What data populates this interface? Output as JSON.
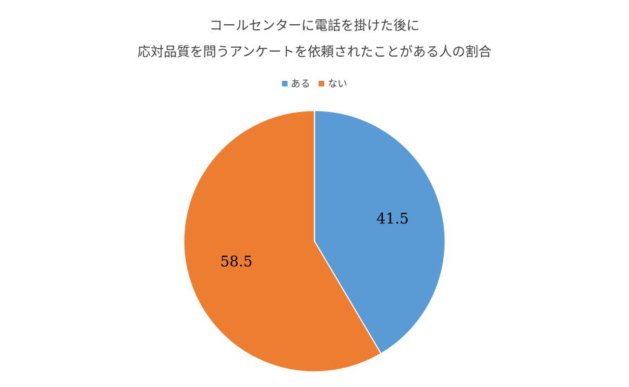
{
  "chart_data": {
    "type": "pie",
    "title": "コールセンターに電話を掛けた後に",
    "subtitle": "応対品質を問うアンケートを依頼されたことがある人の割合",
    "categories": [
      "ある",
      "ない"
    ],
    "values": [
      41.5,
      58.5
    ],
    "data_labels": [
      "41.5",
      "58.5"
    ],
    "colors": [
      "#5B9BD5",
      "#ED7D31"
    ],
    "legend_position": "top",
    "start_angle_deg": 0,
    "direction": "clockwise"
  }
}
